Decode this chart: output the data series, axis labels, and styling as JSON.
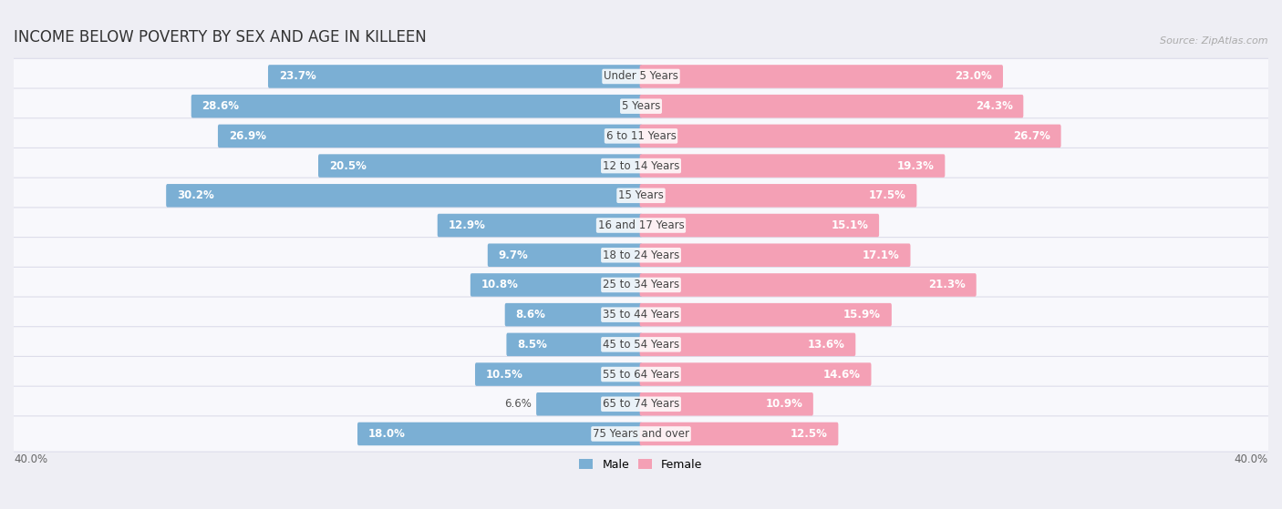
{
  "title": "INCOME BELOW POVERTY BY SEX AND AGE IN KILLEEN",
  "source": "Source: ZipAtlas.com",
  "categories": [
    "Under 5 Years",
    "5 Years",
    "6 to 11 Years",
    "12 to 14 Years",
    "15 Years",
    "16 and 17 Years",
    "18 to 24 Years",
    "25 to 34 Years",
    "35 to 44 Years",
    "45 to 54 Years",
    "55 to 64 Years",
    "65 to 74 Years",
    "75 Years and over"
  ],
  "male": [
    23.7,
    28.6,
    26.9,
    20.5,
    30.2,
    12.9,
    9.7,
    10.8,
    8.6,
    8.5,
    10.5,
    6.6,
    18.0
  ],
  "female": [
    23.0,
    24.3,
    26.7,
    19.3,
    17.5,
    15.1,
    17.1,
    21.3,
    15.9,
    13.6,
    14.6,
    10.9,
    12.5
  ],
  "male_color": "#7bafd4",
  "female_color": "#f4a0b5",
  "background_color": "#eeeef4",
  "row_bg_color": "#f8f8fc",
  "row_border_color": "#ddddea",
  "xlim": 40.0,
  "bar_height": 0.62,
  "title_fontsize": 12,
  "label_fontsize": 8.5,
  "category_fontsize": 8.5,
  "source_fontsize": 8
}
